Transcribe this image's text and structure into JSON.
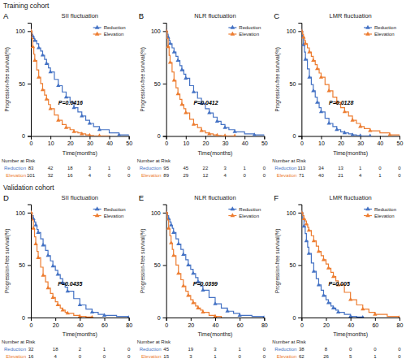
{
  "chart_data": [
    {
      "type": "line",
      "title": "SII fluctuation",
      "subtitle": "Training cohort",
      "xlabel": "Time(months)",
      "ylabel": "Progression-free survival(%)",
      "xlim": [
        0,
        50
      ],
      "xticks": [
        0,
        10,
        20,
        30,
        40,
        50
      ],
      "ylim": [
        0,
        108
      ],
      "yticks": [
        0,
        50,
        100
      ],
      "grid": false,
      "legend": "upper right",
      "line_style": "steps-post",
      "marker": "triangle-up",
      "annotations": [
        {
          "text": "A"
        },
        {
          "text": "P=0.0416",
          "x": 14,
          "y": 30
        }
      ],
      "at_risk_title": "Number at Risk",
      "series": [
        {
          "name": "Reduction",
          "color": "#4472c4",
          "x": [
            0,
            0.5,
            1,
            1.5,
            2,
            3,
            4,
            5,
            6,
            7,
            8,
            9,
            10,
            12,
            14,
            16,
            18,
            20,
            22,
            24,
            26,
            28,
            30,
            32,
            35,
            40,
            45,
            50
          ],
          "values": [
            100,
            97,
            95,
            93,
            91,
            88,
            84,
            81,
            77,
            73,
            69,
            65,
            61,
            54,
            48,
            42,
            37,
            32,
            27,
            23,
            19,
            15,
            12,
            9,
            6,
            3,
            1,
            0
          ],
          "at_risk": [
            83,
            42,
            18,
            3,
            1,
            0
          ]
        },
        {
          "name": "Elevation",
          "color": "#ed7d31",
          "x": [
            0,
            0.5,
            1,
            1.5,
            2,
            3,
            4,
            5,
            6,
            7,
            8,
            9,
            10,
            12,
            14,
            16,
            18,
            20,
            22,
            24,
            26,
            28,
            30,
            32,
            35,
            40
          ],
          "values": [
            100,
            93,
            85,
            78,
            72,
            63,
            56,
            50,
            44,
            39,
            35,
            30,
            26,
            20,
            15,
            11,
            8,
            6,
            4,
            3,
            2,
            1,
            0.5,
            0.2,
            0.1,
            0
          ],
          "at_risk": [
            101,
            32,
            16,
            4,
            0,
            0
          ]
        }
      ]
    },
    {
      "type": "line",
      "title": "NLR fluctuation",
      "xlabel": "Time(months)",
      "ylabel": "Progression-free survival(%)",
      "xlim": [
        0,
        50
      ],
      "xticks": [
        0,
        10,
        20,
        30,
        40,
        50
      ],
      "ylim": [
        0,
        108
      ],
      "yticks": [
        0,
        50,
        100
      ],
      "grid": false,
      "legend": "upper right",
      "line_style": "steps-post",
      "marker": "triangle-up",
      "annotations": [
        {
          "text": "B"
        },
        {
          "text": "P=0.0412",
          "x": 14,
          "y": 30
        }
      ],
      "at_risk_title": "Number at Risk",
      "series": [
        {
          "name": "Reduction",
          "color": "#4472c4",
          "x": [
            0,
            0.5,
            1,
            1.5,
            2,
            3,
            4,
            5,
            6,
            7,
            8,
            9,
            10,
            12,
            14,
            16,
            18,
            20,
            22,
            24,
            26,
            28,
            30,
            32,
            35,
            40,
            45,
            50
          ],
          "values": [
            100,
            97,
            94,
            91,
            88,
            84,
            80,
            76,
            72,
            67,
            63,
            59,
            55,
            48,
            42,
            36,
            31,
            26,
            22,
            18,
            14,
            11,
            8,
            6,
            4,
            2,
            1,
            0
          ],
          "at_risk": [
            95,
            45,
            22,
            3,
            1,
            0
          ]
        },
        {
          "name": "Elevation",
          "color": "#ed7d31",
          "x": [
            0,
            0.5,
            1,
            1.5,
            2,
            3,
            4,
            5,
            6,
            7,
            8,
            9,
            10,
            12,
            14,
            16,
            18,
            20,
            22,
            24,
            26,
            28,
            30,
            32,
            35
          ],
          "values": [
            100,
            93,
            85,
            77,
            70,
            61,
            53,
            46,
            40,
            35,
            30,
            26,
            22,
            16,
            11,
            8,
            5,
            3,
            2,
            1,
            0.5,
            0.3,
            0.1,
            0.05,
            0
          ],
          "at_risk": [
            89,
            29,
            12,
            4,
            0,
            0
          ]
        }
      ]
    },
    {
      "type": "line",
      "title": "LMR fluctuation",
      "xlabel": "Time(months)",
      "ylabel": "Progression-free survival(%)",
      "xlim": [
        0,
        50
      ],
      "xticks": [
        0,
        10,
        20,
        30,
        40,
        50
      ],
      "ylim": [
        0,
        108
      ],
      "yticks": [
        0,
        50,
        100
      ],
      "grid": false,
      "legend": "upper right",
      "line_style": "steps-post",
      "marker": "triangle-up",
      "annotations": [
        {
          "text": "C"
        },
        {
          "text": "P=0.0128",
          "x": 14,
          "y": 30
        }
      ],
      "at_risk_title": "Number at Risk",
      "series": [
        {
          "name": "Reduction",
          "color": "#4472c4",
          "x": [
            0,
            0.5,
            1,
            1.5,
            2,
            3,
            4,
            5,
            6,
            7,
            8,
            9,
            10,
            12,
            14,
            16,
            18,
            20,
            22,
            24,
            26,
            28,
            30,
            32,
            35
          ],
          "values": [
            100,
            94,
            87,
            80,
            73,
            64,
            56,
            49,
            43,
            37,
            32,
            27,
            23,
            17,
            12,
            9,
            6,
            4,
            3,
            2,
            1,
            0.5,
            0.2,
            0.1,
            0
          ],
          "at_risk": [
            113,
            34,
            13,
            1,
            0,
            0
          ]
        },
        {
          "name": "Elevation",
          "color": "#ed7d31",
          "x": [
            0,
            0.5,
            1,
            1.5,
            2,
            3,
            4,
            5,
            6,
            7,
            8,
            9,
            10,
            12,
            14,
            16,
            18,
            20,
            22,
            24,
            26,
            28,
            30,
            32,
            35,
            40,
            45,
            50
          ],
          "values": [
            100,
            97,
            94,
            91,
            88,
            84,
            80,
            76,
            72,
            68,
            64,
            60,
            56,
            49,
            43,
            37,
            32,
            27,
            23,
            19,
            15,
            12,
            9,
            7,
            5,
            3,
            1,
            0
          ],
          "at_risk": [
            71,
            40,
            21,
            4,
            1,
            0
          ]
        }
      ]
    },
    {
      "type": "line",
      "title": "SII fluctuation",
      "subtitle": "Validation cohort",
      "xlabel": "Time(months)",
      "ylabel": "Progression-free survival(%)",
      "xlim": [
        0,
        80
      ],
      "xticks": [
        0,
        20,
        40,
        60,
        80
      ],
      "ylim": [
        0,
        108
      ],
      "yticks": [
        0,
        50,
        100
      ],
      "grid": false,
      "legend": "upper right",
      "line_style": "steps-post",
      "marker": "triangle-up",
      "annotations": [
        {
          "text": "D"
        },
        {
          "text": "P=0.0435",
          "x": 22,
          "y": 30
        }
      ],
      "at_risk_title": "Number at Risk",
      "series": [
        {
          "name": "Reduction",
          "color": "#4472c4",
          "x": [
            0,
            1,
            2,
            3,
            4,
            5,
            6,
            8,
            10,
            12,
            14,
            16,
            18,
            20,
            22,
            24,
            26,
            28,
            30,
            35,
            40,
            45,
            50,
            55,
            60,
            70,
            80
          ],
          "values": [
            100,
            97,
            94,
            91,
            88,
            84,
            81,
            75,
            69,
            64,
            59,
            54,
            49,
            45,
            41,
            37,
            33,
            29,
            25,
            18,
            12,
            8,
            5,
            3,
            2,
            1,
            0
          ],
          "at_risk": [
            32,
            18,
            2,
            1,
            0
          ]
        },
        {
          "name": "Elevation",
          "color": "#ed7d31",
          "x": [
            0,
            1,
            2,
            3,
            4,
            5,
            6,
            8,
            10,
            12,
            14,
            16,
            18,
            20,
            22,
            24,
            26,
            28,
            30,
            35,
            40,
            45,
            50
          ],
          "values": [
            100,
            93,
            85,
            77,
            70,
            63,
            57,
            48,
            40,
            34,
            28,
            23,
            19,
            15,
            12,
            9,
            7,
            5,
            4,
            2,
            1,
            0.5,
            0
          ],
          "at_risk": [
            16,
            4,
            0,
            0,
            0
          ]
        }
      ]
    },
    {
      "type": "line",
      "title": "NLR fluctuation",
      "xlabel": "Time(months)",
      "ylabel": "Progression-free survival(%)",
      "xlim": [
        0,
        80
      ],
      "xticks": [
        0,
        20,
        40,
        60,
        80
      ],
      "ylim": [
        0,
        108
      ],
      "yticks": [
        0,
        50,
        100
      ],
      "grid": false,
      "legend": "upper right",
      "line_style": "steps-post",
      "marker": "triangle-up",
      "annotations": [
        {
          "text": "E"
        },
        {
          "text": "P=0.0399",
          "x": 22,
          "y": 30
        }
      ],
      "at_risk_title": "Number at Risk",
      "series": [
        {
          "name": "Reduction",
          "color": "#4472c4",
          "x": [
            0,
            1,
            2,
            3,
            4,
            5,
            6,
            8,
            10,
            12,
            14,
            16,
            18,
            20,
            22,
            24,
            26,
            28,
            30,
            35,
            40,
            45,
            50,
            55,
            60,
            70,
            80
          ],
          "values": [
            100,
            97,
            94,
            91,
            88,
            85,
            81,
            75,
            70,
            65,
            60,
            55,
            50,
            46,
            42,
            38,
            34,
            30,
            26,
            19,
            13,
            9,
            6,
            4,
            2,
            1,
            0
          ],
          "at_risk": [
            45,
            19,
            3,
            1,
            0
          ]
        },
        {
          "name": "Elevation",
          "color": "#ed7d31",
          "x": [
            0,
            1,
            2,
            3,
            4,
            5,
            6,
            8,
            10,
            12,
            14,
            16,
            18,
            20,
            22,
            24,
            26,
            28,
            30,
            35,
            40,
            45
          ],
          "values": [
            100,
            93,
            85,
            78,
            71,
            65,
            59,
            50,
            42,
            36,
            30,
            25,
            21,
            17,
            14,
            11,
            9,
            7,
            5,
            2,
            1,
            0
          ],
          "at_risk": [
            15,
            3,
            1,
            0,
            0
          ]
        }
      ]
    },
    {
      "type": "line",
      "title": "LMR fluctuation",
      "xlabel": "Time(months)",
      "ylabel": "Progression-free survival(%)",
      "xlim": [
        0,
        80
      ],
      "xticks": [
        0,
        20,
        40,
        60,
        80
      ],
      "ylim": [
        0,
        108
      ],
      "yticks": [
        0,
        50,
        100
      ],
      "grid": false,
      "legend": "upper right",
      "line_style": "steps-post",
      "marker": "triangle-up",
      "annotations": [
        {
          "text": "F"
        },
        {
          "text": "P=0.005",
          "x": 22,
          "y": 30
        }
      ],
      "at_risk_title": "Number at Risk",
      "series": [
        {
          "name": "Reduction",
          "color": "#4472c4",
          "x": [
            0,
            1,
            2,
            3,
            4,
            5,
            6,
            8,
            10,
            12,
            14,
            16,
            18,
            20,
            22,
            24,
            26,
            28,
            30,
            35,
            40,
            45,
            50
          ],
          "values": [
            100,
            94,
            87,
            80,
            73,
            67,
            61,
            52,
            44,
            37,
            31,
            26,
            21,
            17,
            14,
            11,
            9,
            7,
            5,
            3,
            1,
            0.5,
            0
          ],
          "at_risk": [
            38,
            8,
            0,
            0,
            0
          ]
        },
        {
          "name": "Elevation",
          "color": "#ed7d31",
          "x": [
            0,
            1,
            2,
            3,
            4,
            5,
            6,
            8,
            10,
            12,
            14,
            16,
            18,
            20,
            22,
            24,
            26,
            28,
            30,
            35,
            40,
            45,
            50,
            55,
            60,
            70,
            80
          ],
          "values": [
            100,
            97,
            94,
            92,
            89,
            86,
            83,
            78,
            73,
            68,
            63,
            59,
            55,
            51,
            47,
            43,
            39,
            35,
            31,
            24,
            17,
            12,
            8,
            5,
            3,
            1,
            0
          ],
          "at_risk": [
            62,
            26,
            5,
            1,
            0
          ]
        }
      ]
    }
  ]
}
